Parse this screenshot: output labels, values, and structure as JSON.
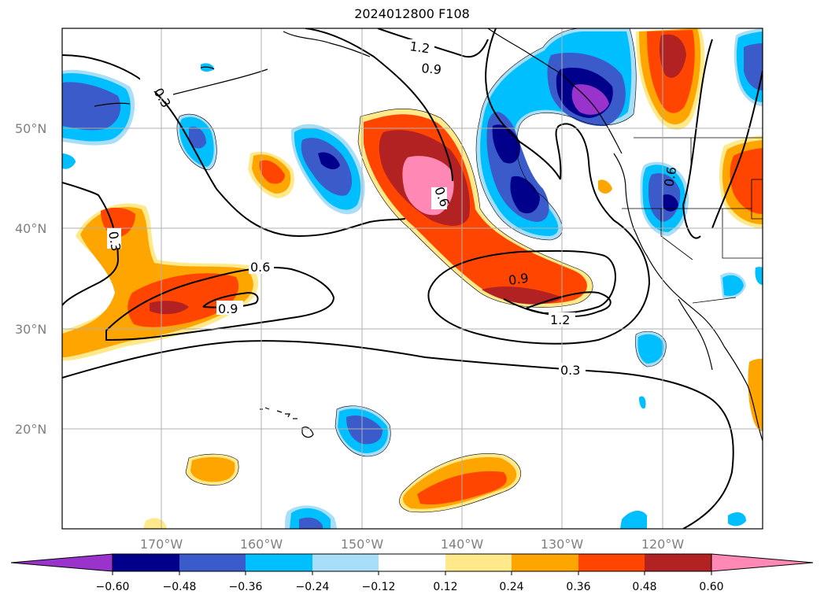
{
  "title": "2024012800 F108",
  "map": {
    "projection": "plate-carree",
    "lon_range": [
      -180,
      -110
    ],
    "lat_range": [
      10,
      60
    ],
    "gridlines": true,
    "lon_ticks": [
      "170°W",
      "160°W",
      "150°W",
      "140°W",
      "130°W",
      "120°W"
    ],
    "lat_ticks": [
      "20°N",
      "30°N",
      "40°N",
      "50°N"
    ]
  },
  "contours": {
    "labels": [
      "0.3",
      "0.3",
      "0.6",
      "0.6",
      "0.6",
      "0.9",
      "0.9",
      "0.9",
      "1.2",
      "1.2",
      "0.3"
    ]
  },
  "colorbar": {
    "ticks": [
      "−0.60",
      "−0.48",
      "−0.36",
      "−0.24",
      "−0.12",
      "0.12",
      "0.24",
      "0.36",
      "0.48",
      "0.60"
    ],
    "colors": [
      "#9933cc",
      "#00008b",
      "#3a5bc9",
      "#00bfff",
      "#a8def8",
      "#ffffff",
      "#ffe98a",
      "#ffa500",
      "#ff4500",
      "#b22222",
      "#ff88b4"
    ]
  },
  "fill_colors": {
    "pink": "#ff88b4",
    "darkred": "#b22222",
    "orangered": "#ff4500",
    "orange": "#ffa500",
    "lightyellow": "#ffe98a",
    "lightblue": "#a8def8",
    "skyblue": "#00bfff",
    "royal": "#3a5bc9",
    "navy": "#00008b",
    "purple": "#9933cc"
  }
}
